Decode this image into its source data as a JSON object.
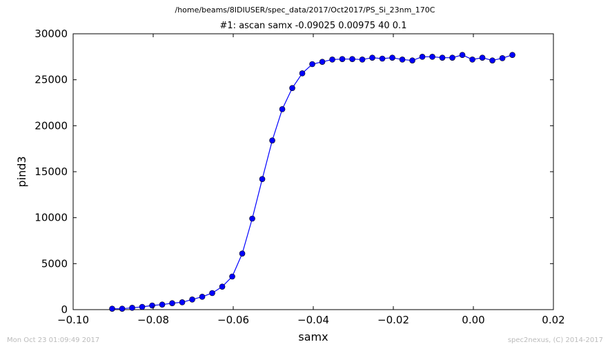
{
  "header": {
    "suptitle": "/home/beams/8IDIUSER/spec_data/2017/Oct2017/PS_Si_23nm_170C"
  },
  "footer": {
    "timestamp": "Mon Oct 23 01:09:49 2017",
    "credit": "spec2nexus, (C) 2014-2017"
  },
  "colors": {
    "series": "#0000ff",
    "footer_text": "#bbbbbb"
  },
  "chart_data": {
    "type": "line",
    "title": "#1: ascan  samx -0.09025 0.00975  40 0.1",
    "xlabel": "samx",
    "ylabel": "pind3",
    "xlim": [
      -0.1,
      0.02
    ],
    "ylim": [
      0,
      30000
    ],
    "x_ticks": [
      -0.1,
      -0.08,
      -0.06,
      -0.04,
      -0.02,
      0.0,
      0.02
    ],
    "x_tick_labels": [
      "−0.10",
      "−0.08",
      "−0.06",
      "−0.04",
      "−0.02",
      "0.00",
      "0.02"
    ],
    "y_ticks": [
      0,
      5000,
      10000,
      15000,
      20000,
      25000,
      30000
    ],
    "y_tick_labels": [
      "0",
      "5000",
      "10000",
      "15000",
      "20000",
      "25000",
      "30000"
    ],
    "grid": false,
    "markers": "circle",
    "series": [
      {
        "x": [
          -0.09025,
          -0.08775,
          -0.08525,
          -0.08275,
          -0.08025,
          -0.07775,
          -0.07525,
          -0.07275,
          -0.07025,
          -0.06775,
          -0.06525,
          -0.06275,
          -0.06025,
          -0.05775,
          -0.05525,
          -0.05275,
          -0.05025,
          -0.04775,
          -0.04525,
          -0.04275,
          -0.04025,
          -0.03775,
          -0.03525,
          -0.03275,
          -0.03025,
          -0.02775,
          -0.02525,
          -0.02275,
          -0.02025,
          -0.01775,
          -0.01525,
          -0.01275,
          -0.01025,
          -0.00775,
          -0.00525,
          -0.00275,
          -0.00025,
          0.00225,
          0.00475,
          0.00725,
          0.00975
        ],
        "y": [
          100,
          100,
          200,
          300,
          450,
          550,
          700,
          800,
          1100,
          1400,
          1800,
          2500,
          3600,
          6100,
          9900,
          14200,
          18400,
          21800,
          24100,
          25700,
          26700,
          26950,
          27200,
          27250,
          27250,
          27200,
          27400,
          27300,
          27400,
          27200,
          27100,
          27500,
          27500,
          27400,
          27400,
          27700,
          27200,
          27400,
          27100,
          27350,
          27700
        ]
      }
    ]
  }
}
